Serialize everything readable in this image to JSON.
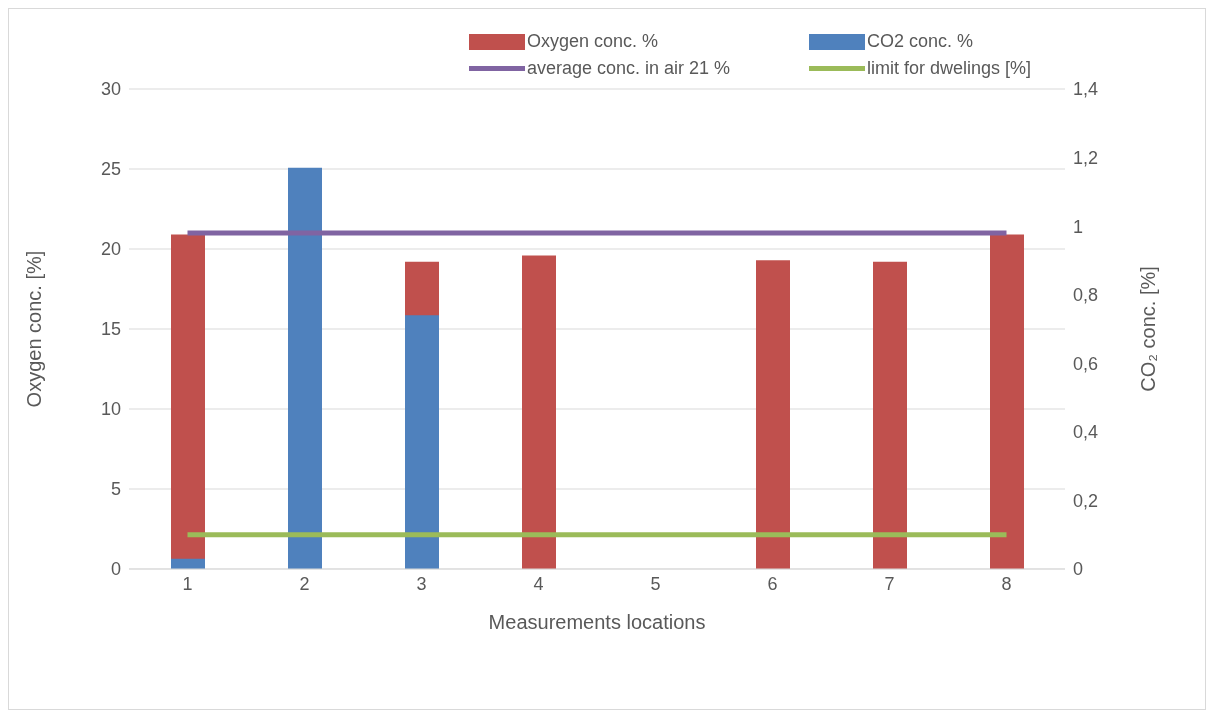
{
  "chart_data": {
    "type": "bar",
    "xlabel": "Measurements locations",
    "ylabel": "Oxygen conc. [%]",
    "y2label": "CO₂ conc. [%]",
    "categories": [
      "1",
      "2",
      "3",
      "4",
      "5",
      "6",
      "7",
      "8"
    ],
    "series": [
      {
        "name": "Oxygen conc. %",
        "color": "#c0504d",
        "values": [
          20.9,
          null,
          19.2,
          19.6,
          null,
          19.3,
          19.2,
          20.9
        ]
      },
      {
        "name": "CO2 conc. %",
        "axis": "y2",
        "color": "#4f81bd",
        "values": [
          0.03,
          1.17,
          0.74,
          null,
          null,
          null,
          null,
          null
        ]
      },
      {
        "name": "average conc. in air 21 %",
        "type": "line",
        "color": "#8064a2",
        "values": [
          21,
          21,
          21,
          21,
          21,
          21,
          21,
          21
        ]
      },
      {
        "name": "limit for dwelings [%]",
        "type": "line",
        "axis": "y2",
        "color": "#9bbb59",
        "values": [
          0.1,
          0.1,
          0.1,
          0.1,
          0.1,
          0.1,
          0.1,
          0.1
        ]
      }
    ],
    "ylim": [
      0,
      30
    ],
    "yticks": [
      0,
      5,
      10,
      15,
      20,
      25,
      30
    ],
    "y2lim": [
      0,
      1.4
    ],
    "y2ticks": [
      0,
      {
        "value": 0.2,
        "label": "0,2"
      },
      {
        "value": 0.4,
        "label": "0,4"
      },
      {
        "value": 0.6,
        "label": "0,6"
      },
      {
        "value": 0.8,
        "label": "0,8"
      },
      1,
      {
        "value": 1.2,
        "label": "1,2"
      },
      {
        "value": 1.4,
        "label": "1,4"
      }
    ],
    "grid": "y",
    "legend": "top",
    "marker": "none"
  }
}
